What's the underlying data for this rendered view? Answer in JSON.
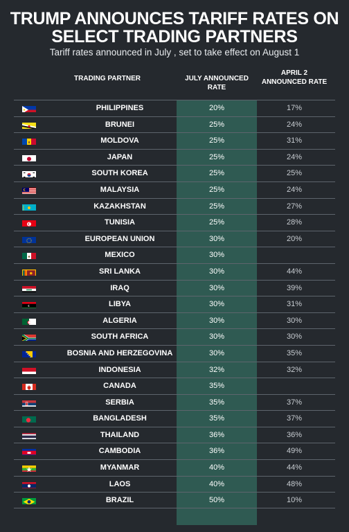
{
  "title": "TRUMP ANNOUNCES TARIFF RATES ON SELECT TRADING PARTNERS",
  "subtitle": "Tariff rates announced in July , set to take effect on August 1",
  "chart_data": {
    "type": "table",
    "columns": [
      "TRADING PARTNER",
      "JULY ANNOUNCED RATE",
      "APRIL 2 ANNOUNCED RATE"
    ],
    "highlight_color": "#2f5a52",
    "rows": [
      {
        "country": "PHILIPPINES",
        "july": "20%",
        "april": "17%",
        "flag": "philippines-flag"
      },
      {
        "country": "BRUNEI",
        "july": "25%",
        "april": "24%",
        "flag": "brunei-flag"
      },
      {
        "country": "MOLDOVA",
        "july": "25%",
        "april": "31%",
        "flag": "moldova-flag"
      },
      {
        "country": "JAPAN",
        "july": "25%",
        "april": "24%",
        "flag": "japan-flag"
      },
      {
        "country": "SOUTH KOREA",
        "july": "25%",
        "april": "25%",
        "flag": "south-korea-flag"
      },
      {
        "country": "MALAYSIA",
        "july": "25%",
        "april": "24%",
        "flag": "malaysia-flag"
      },
      {
        "country": "KAZAKHSTAN",
        "july": "25%",
        "april": "27%",
        "flag": "kazakhstan-flag"
      },
      {
        "country": "TUNISIA",
        "july": "25%",
        "april": "28%",
        "flag": "tunisia-flag"
      },
      {
        "country": "EUROPEAN UNION",
        "july": "30%",
        "april": "20%",
        "flag": "eu-flag"
      },
      {
        "country": "MEXICO",
        "july": "30%",
        "april": "",
        "flag": "mexico-flag"
      },
      {
        "country": "SRI LANKA",
        "july": "30%",
        "april": "44%",
        "flag": "sri-lanka-flag"
      },
      {
        "country": "IRAQ",
        "july": "30%",
        "april": "39%",
        "flag": "iraq-flag"
      },
      {
        "country": "LIBYA",
        "july": "30%",
        "april": "31%",
        "flag": "libya-flag"
      },
      {
        "country": "ALGERIA",
        "july": "30%",
        "april": "30%",
        "flag": "algeria-flag"
      },
      {
        "country": "SOUTH AFRICA",
        "july": "30%",
        "april": "30%",
        "flag": "south-africa-flag"
      },
      {
        "country": "BOSNIA AND HERZEGOVINA",
        "july": "30%",
        "april": "35%",
        "flag": "bosnia-flag"
      },
      {
        "country": "INDONESIA",
        "july": "32%",
        "april": "32%",
        "flag": "indonesia-flag"
      },
      {
        "country": "CANADA",
        "july": "35%",
        "april": "",
        "flag": "canada-flag"
      },
      {
        "country": "SERBIA",
        "july": "35%",
        "april": "37%",
        "flag": "serbia-flag"
      },
      {
        "country": "BANGLADESH",
        "july": "35%",
        "april": "37%",
        "flag": "bangladesh-flag"
      },
      {
        "country": "THAILAND",
        "july": "36%",
        "april": "36%",
        "flag": "thailand-flag"
      },
      {
        "country": "CAMBODIA",
        "july": "36%",
        "april": "49%",
        "flag": "cambodia-flag"
      },
      {
        "country": "MYANMAR",
        "july": "40%",
        "april": "44%",
        "flag": "myanmar-flag"
      },
      {
        "country": "LAOS",
        "july": "40%",
        "april": "48%",
        "flag": "laos-flag"
      },
      {
        "country": "BRAZIL",
        "july": "50%",
        "april": "10%",
        "flag": "brazil-flag"
      }
    ]
  }
}
